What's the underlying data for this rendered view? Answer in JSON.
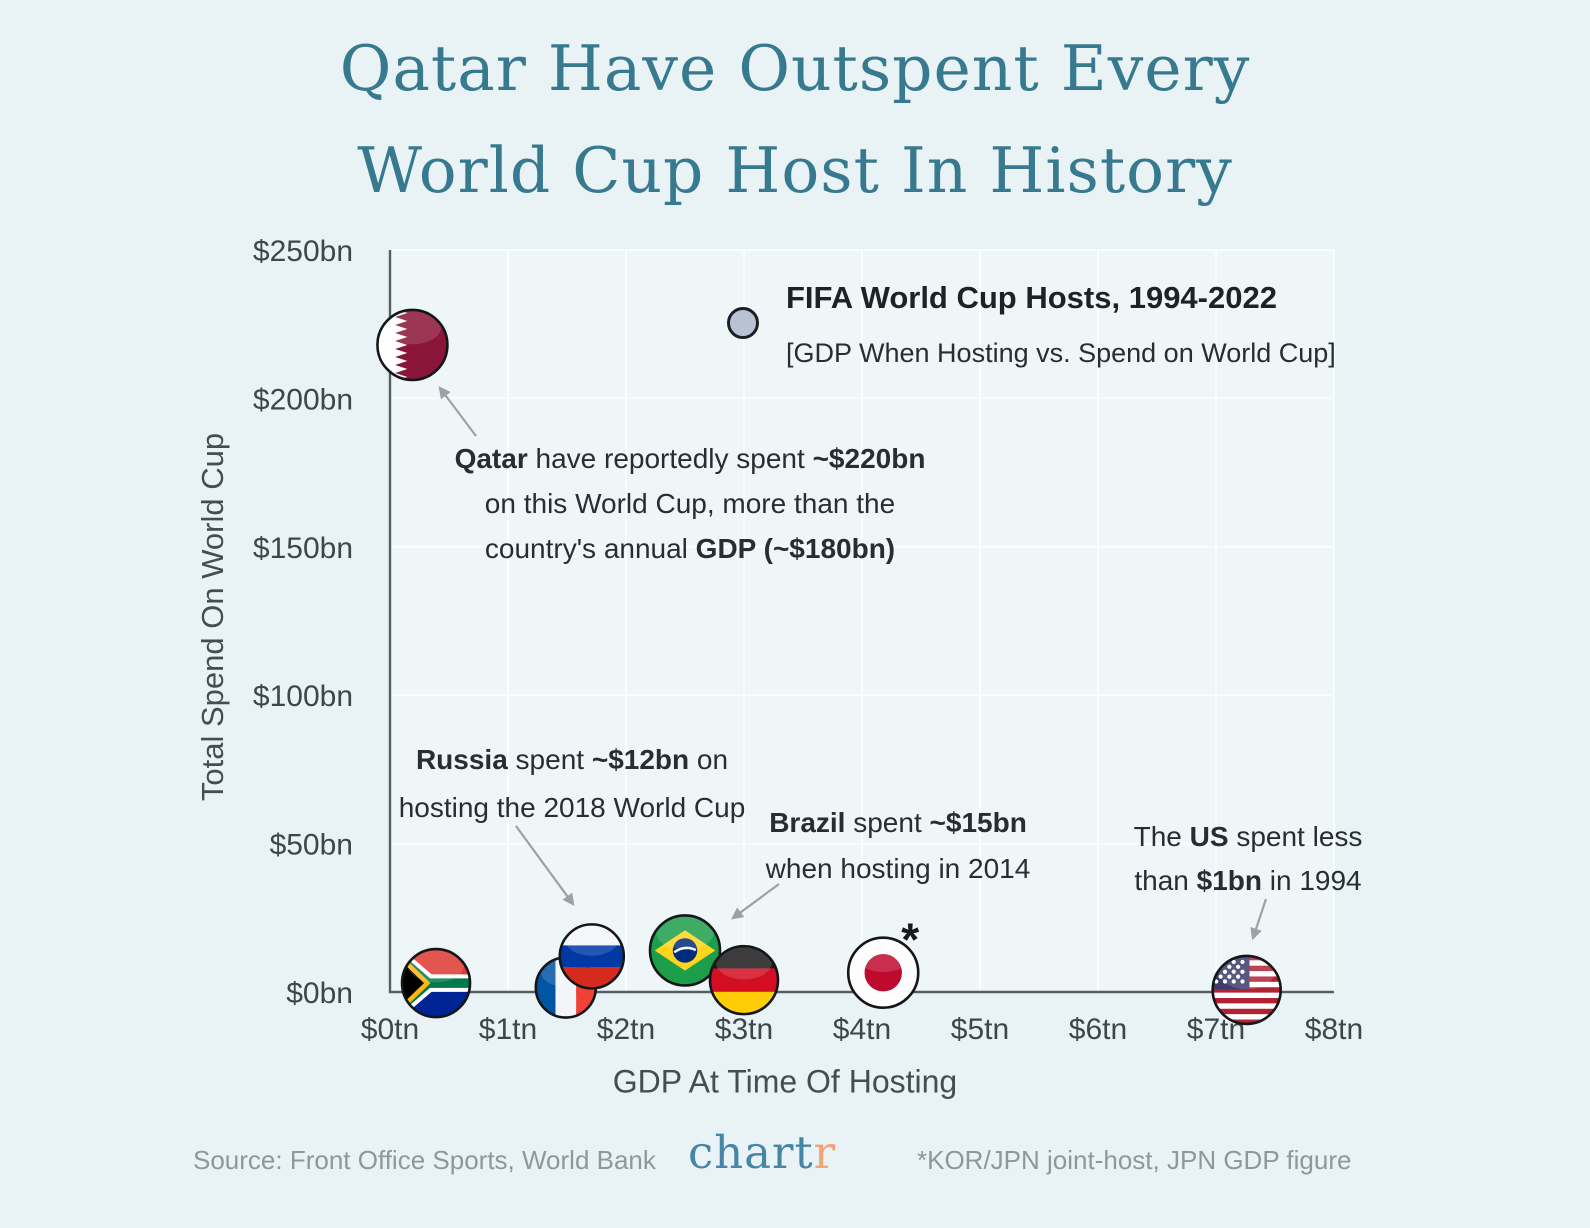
{
  "title": {
    "line1": "Qatar Have Outspent Every",
    "line2": "World Cup Host In History"
  },
  "chart_data": {
    "type": "scatter",
    "title": "FIFA World Cup Hosts, 1994-2022",
    "subtitle": "[GDP When Hosting vs. Spend on World Cup]",
    "xlabel": "GDP At Time Of Hosting",
    "ylabel": "Total Spend On World Cup",
    "xlim": [
      0,
      8
    ],
    "ylim": [
      0,
      250
    ],
    "x_unit": "trillion USD",
    "y_unit": "billion USD",
    "grid": true,
    "legend_position": "top-right",
    "x_tick_labels": [
      "$0tn",
      "$1tn",
      "$2tn",
      "$3tn",
      "$4tn",
      "$5tn",
      "$6tn",
      "$7tn",
      "$8tn"
    ],
    "y_tick_labels": [
      "$0bn",
      "$50bn",
      "$100bn",
      "$150bn",
      "$200bn",
      "$250bn"
    ],
    "points": [
      {
        "country": "Qatar",
        "flag": "qatar",
        "gdp_tn": 0.19,
        "spend_bn": 218
      },
      {
        "country": "South Africa",
        "flag": "south-africa",
        "gdp_tn": 0.39,
        "spend_bn": 3
      },
      {
        "country": "France",
        "flag": "france",
        "gdp_tn": 1.49,
        "spend_bn": 1.5
      },
      {
        "country": "Russia",
        "flag": "russia",
        "gdp_tn": 1.71,
        "spend_bn": 12
      },
      {
        "country": "Brazil",
        "flag": "brazil",
        "gdp_tn": 2.5,
        "spend_bn": 14
      },
      {
        "country": "Germany",
        "flag": "germany",
        "gdp_tn": 3.0,
        "spend_bn": 4
      },
      {
        "country": "Japan",
        "flag": "japan",
        "gdp_tn": 4.18,
        "spend_bn": 6.5,
        "marker_suffix": "*"
      },
      {
        "country": "United States",
        "flag": "usa",
        "gdp_tn": 7.26,
        "spend_bn": 0.7
      }
    ]
  },
  "annotations": [
    {
      "id": "qatar",
      "lines": [
        [
          {
            "t": "Qatar",
            "b": true
          },
          {
            "t": " have reportedly spent ",
            "b": false
          },
          {
            "t": "~$220bn",
            "b": true
          }
        ],
        [
          {
            "t": "on this World Cup, more than the",
            "b": false
          }
        ],
        [
          {
            "t": "country's annual ",
            "b": false
          },
          {
            "t": "GDP (~$180bn)",
            "b": true
          }
        ]
      ]
    },
    {
      "id": "russia",
      "lines": [
        [
          {
            "t": "Russia",
            "b": true
          },
          {
            "t": " spent ",
            "b": false
          },
          {
            "t": "~$12bn",
            "b": true
          },
          {
            "t": " on",
            "b": false
          }
        ],
        [
          {
            "t": "hosting the 2018 World Cup",
            "b": false
          }
        ]
      ]
    },
    {
      "id": "brazil",
      "lines": [
        [
          {
            "t": "Brazil",
            "b": true
          },
          {
            "t": " spent ",
            "b": false
          },
          {
            "t": "~$15bn",
            "b": true
          }
        ],
        [
          {
            "t": "when hosting in 2014",
            "b": false
          }
        ]
      ]
    },
    {
      "id": "us",
      "lines": [
        [
          {
            "t": "The ",
            "b": false
          },
          {
            "t": "US",
            "b": true
          },
          {
            "t": " spent less",
            "b": false
          }
        ],
        [
          {
            "t": "than ",
            "b": false
          },
          {
            "t": "$1bn",
            "b": true
          },
          {
            "t": " in 1994",
            "b": false
          }
        ]
      ]
    }
  ],
  "footer": {
    "source": "Source: Front Office Sports, World Bank",
    "logo_teal": "chart",
    "logo_orange": "r",
    "footnote": "*KOR/JPN joint-host, JPN GDP figure"
  },
  "colors": {
    "background": "#e9f3f6",
    "title": "#37798f",
    "text": "#272e33",
    "axis": "#565e63",
    "grid": "#fafdfe",
    "muted": "#8d989e",
    "arrow": "#9aa2a8",
    "legend_marker": "#b9c2d2",
    "logo_teal": "#4586a6",
    "logo_orange": "#f2a477"
  }
}
